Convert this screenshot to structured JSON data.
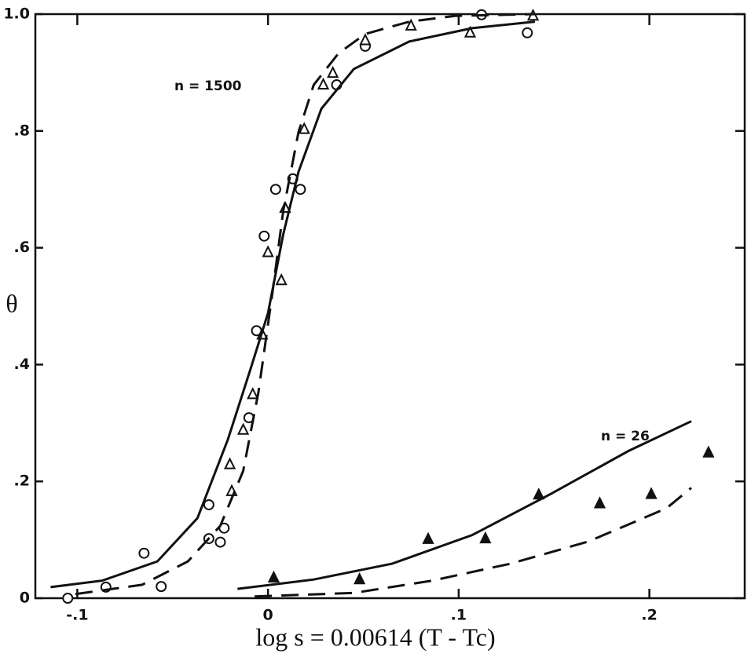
{
  "chart_data": {
    "type": "scatter",
    "x_label": "log s = 0.00614 (T - Tc)",
    "y_label": "θ",
    "annotations": [
      "n = 1500",
      "n = 26"
    ],
    "xlim": [
      -0.122,
      0.25
    ],
    "ylim": [
      0,
      1
    ],
    "xticks": [
      {
        "value": -0.1,
        "label": "-.1"
      },
      0,
      {
        "value": 0.1,
        "label": ".1"
      },
      {
        "value": 0.2,
        "label": ".2"
      }
    ],
    "yticks": [
      0,
      {
        "value": 0.2,
        "label": ".2"
      },
      {
        "value": 0.4,
        "label": ".4"
      },
      {
        "value": 0.6,
        "label": ".6"
      },
      {
        "value": 0.8,
        "label": ".8"
      },
      {
        "value": 1,
        "label": "1.0"
      }
    ],
    "color": "#111111",
    "series": [
      {
        "type": "scatter",
        "marker": "circle",
        "filled": false,
        "x": [
          -0.105,
          -0.085,
          -0.065,
          -0.056,
          -0.031,
          -0.031,
          -0.025,
          -0.023,
          -0.01,
          -0.006,
          -0.002,
          0.004,
          0.013,
          0.017,
          0.036,
          0.051,
          0.112,
          0.136
        ],
        "values": [
          0.0,
          0.019,
          0.077,
          0.02,
          0.16,
          0.102,
          0.096,
          0.12,
          0.309,
          0.458,
          0.62,
          0.7,
          0.718,
          0.7,
          0.879,
          0.945,
          0.999,
          0.968
        ]
      },
      {
        "type": "scatter",
        "marker": "triangle",
        "filled": false,
        "x": [
          -0.019,
          -0.02,
          -0.013,
          -0.008,
          -0.003,
          0.0,
          0.007,
          0.009,
          0.019,
          0.029,
          0.034,
          0.051,
          0.075,
          0.106,
          0.139
        ],
        "values": [
          0.183,
          0.229,
          0.288,
          0.349,
          0.451,
          0.592,
          0.544,
          0.668,
          0.803,
          0.879,
          0.899,
          0.955,
          0.98,
          0.968,
          0.997
        ]
      },
      {
        "type": "scatter",
        "marker": "triangle",
        "filled": true,
        "x": [
          0.003,
          0.048,
          0.084,
          0.114,
          0.142,
          0.174,
          0.201,
          0.231
        ],
        "values": [
          0.035,
          0.032,
          0.101,
          0.102,
          0.177,
          0.162,
          0.178,
          0.249
        ]
      },
      {
        "type": "line",
        "dashed": false,
        "x": [
          -0.114,
          -0.087,
          -0.058,
          -0.037,
          -0.021,
          -0.009,
          0.0,
          0.008,
          0.016,
          0.028,
          0.045,
          0.074,
          0.107,
          0.14
        ],
        "values": [
          0.019,
          0.03,
          0.063,
          0.137,
          0.272,
          0.394,
          0.488,
          0.623,
          0.73,
          0.838,
          0.906,
          0.953,
          0.976,
          0.987
        ]
      },
      {
        "type": "line",
        "dashed": true,
        "x": [
          -0.101,
          -0.066,
          -0.042,
          -0.025,
          -0.013,
          -0.005,
          0.002,
          0.008,
          0.016,
          0.024,
          0.037,
          0.051,
          0.074,
          0.098,
          0.14
        ],
        "values": [
          0.007,
          0.023,
          0.063,
          0.124,
          0.218,
          0.353,
          0.515,
          0.663,
          0.798,
          0.879,
          0.933,
          0.966,
          0.987,
          0.997,
          1.0
        ]
      },
      {
        "type": "line",
        "dashed": false,
        "x": [
          -0.016,
          0.024,
          0.065,
          0.107,
          0.148,
          0.189,
          0.222
        ],
        "values": [
          0.016,
          0.032,
          0.059,
          0.108,
          0.178,
          0.252,
          0.303
        ]
      },
      {
        "type": "line",
        "dashed": true,
        "x": [
          -0.007,
          0.045,
          0.086,
          0.127,
          0.168,
          0.209,
          0.222
        ],
        "values": [
          0.003,
          0.009,
          0.03,
          0.059,
          0.097,
          0.154,
          0.189
        ]
      }
    ]
  }
}
